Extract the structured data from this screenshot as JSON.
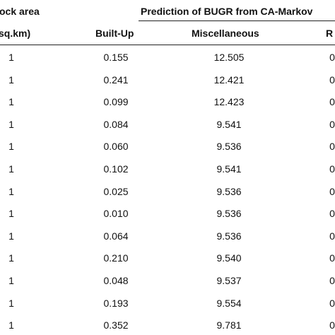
{
  "table": {
    "header_left_top": "ock area",
    "header_left_bottom": "sq.km)",
    "group_header": "Prediction of BUGR from CA-Markov",
    "columns": {
      "built_up": "Built-Up",
      "miscellaneous": "Miscellaneous",
      "partial": "R"
    },
    "rows": [
      {
        "area": "1",
        "built_up": "0.155",
        "misc": "12.505",
        "partial": "0."
      },
      {
        "area": "1",
        "built_up": "0.241",
        "misc": "12.421",
        "partial": "0."
      },
      {
        "area": "1",
        "built_up": "0.099",
        "misc": "12.423",
        "partial": "0."
      },
      {
        "area": "1",
        "built_up": "0.084",
        "misc": "9.541",
        "partial": "0."
      },
      {
        "area": "1",
        "built_up": "0.060",
        "misc": "9.536",
        "partial": "0."
      },
      {
        "area": "1",
        "built_up": "0.102",
        "misc": "9.541",
        "partial": "0."
      },
      {
        "area": "1",
        "built_up": "0.025",
        "misc": "9.536",
        "partial": "0."
      },
      {
        "area": "1",
        "built_up": "0.010",
        "misc": "9.536",
        "partial": "0."
      },
      {
        "area": "1",
        "built_up": "0.064",
        "misc": "9.536",
        "partial": "0."
      },
      {
        "area": "1",
        "built_up": "0.210",
        "misc": "9.540",
        "partial": "0."
      },
      {
        "area": "1",
        "built_up": "0.048",
        "misc": "9.537",
        "partial": "0."
      },
      {
        "area": "1",
        "built_up": "0.193",
        "misc": "9.554",
        "partial": "0."
      },
      {
        "area": "1",
        "built_up": "0.352",
        "misc": "9.781",
        "partial": "0."
      }
    ]
  }
}
